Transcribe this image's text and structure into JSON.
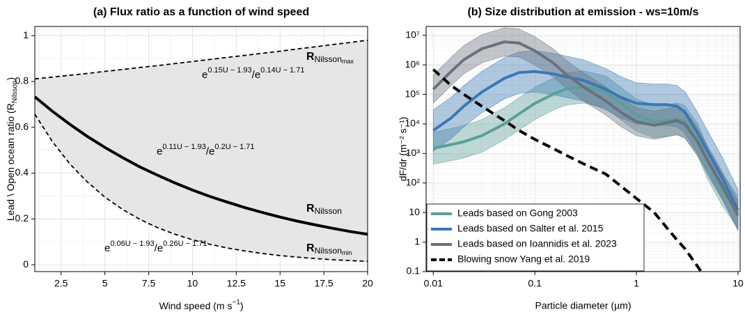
{
  "chart_data": [
    {
      "type": "line",
      "title": "(a) Flux ratio as a function of wind speed",
      "x": [
        1,
        2,
        3,
        4,
        5,
        6,
        7,
        8,
        9,
        10,
        11,
        12,
        13,
        14,
        15,
        16,
        17,
        18,
        19,
        20
      ],
      "xlim": [
        1,
        20
      ],
      "xticks": [
        2.5,
        5,
        7.5,
        10,
        12.5,
        15,
        17.5,
        20
      ],
      "ylim": [
        -0.03,
        1.04
      ],
      "yticks": [
        0,
        0.2,
        0.4,
        0.6,
        0.8,
        1
      ],
      "grid": true,
      "shade_color": "#e6e6e6",
      "xlabel": {
        "text": "Wind speed (m s",
        "sup": "−1",
        "end": ")"
      },
      "ylabel": {
        "text": "Lead \\ Open ocean ratio (R",
        "sub": "Nilsson",
        "end": ")"
      },
      "series": [
        {
          "color": "#000000",
          "style": "solid",
          "values": [
            0.733,
            0.67,
            0.613,
            0.56,
            0.512,
            0.468,
            0.427,
            0.391,
            0.357,
            0.326,
            0.298,
            0.273,
            0.249,
            0.228,
            0.208,
            0.19,
            0.174,
            0.159,
            0.145,
            0.133
          ]
        },
        {
          "color": "#000000",
          "style": "dashed",
          "values": [
            0.811,
            0.819,
            0.827,
            0.835,
            0.844,
            0.852,
            0.861,
            0.869,
            0.878,
            0.887,
            0.896,
            0.905,
            0.914,
            0.923,
            0.932,
            0.942,
            0.951,
            0.961,
            0.97,
            0.98
          ]
        },
        {
          "color": "#000000",
          "style": "dashed",
          "values": [
            0.657,
            0.538,
            0.44,
            0.361,
            0.295,
            0.242,
            0.198,
            0.162,
            0.133,
            0.109,
            0.089,
            0.073,
            0.06,
            0.049,
            0.04,
            0.033,
            0.027,
            0.022,
            0.018,
            0.015
          ]
        }
      ],
      "curve_labels": [
        {
          "R": "R",
          "sub": "Nilsson"
        },
        {
          "R": "R",
          "sub": "Nilsson",
          "subsub": "max"
        },
        {
          "R": "R",
          "sub": "Nilsson",
          "subsub": "min"
        }
      ],
      "formulas": [
        {
          "e1": "e",
          "x1": "0.11U − 1.93",
          "e2": "/e",
          "x2": "0.2U − 1.71"
        },
        {
          "e1": "e",
          "x1": "0.15U − 1.93",
          "e2": "/e",
          "x2": "0.14U − 1.71"
        },
        {
          "e1": "e",
          "x1": "0.06U − 1.93",
          "e2": "/e",
          "x2": "0.26U − 1.71"
        }
      ]
    },
    {
      "type": "line",
      "title": "(b) Size distribution at emission - ws=10m/s",
      "log_x": true,
      "log_y": true,
      "grid": true,
      "minor_grid": true,
      "legend": "lower left",
      "x": [
        0.01,
        0.015,
        0.02,
        0.03,
        0.05,
        0.07,
        0.1,
        0.15,
        0.2,
        0.3,
        0.5,
        0.7,
        1,
        1.5,
        2,
        2.5,
        3,
        4,
        5,
        7,
        10
      ],
      "xlim": [
        0.0085,
        10.5
      ],
      "xticks": [
        0.01,
        0.1,
        1,
        10
      ],
      "ylim": [
        0.1,
        20000000
      ],
      "yticks": [
        0.1,
        1,
        10,
        {
          "value": 100,
          "label": "10²"
        },
        {
          "value": 1000,
          "label": "10³"
        },
        {
          "value": 10000,
          "label": "10⁴"
        },
        {
          "value": 100000,
          "label": "10⁵"
        },
        {
          "value": 1000000,
          "label": "10⁶"
        },
        {
          "value": 10000000,
          "label": "10⁷"
        }
      ],
      "xlabel": "Particle diameter (µm)",
      "ylabel": "dF/dr (m⁻² s⁻¹)",
      "series": [
        {
          "name": "Leads based on Gong 2003",
          "color": "#5a9e9a",
          "style": "solid",
          "values": [
            1500,
            2000,
            2500,
            4000,
            10000,
            22000,
            50000,
            100000,
            150000,
            180000,
            120000,
            50000,
            20000,
            12000,
            13000,
            15000,
            12000,
            3000,
            500,
            60,
            10
          ],
          "lower": [
            430,
            570,
            710,
            1100,
            2900,
            6300,
            14000,
            29000,
            43000,
            51000,
            34000,
            14000,
            5700,
            3400,
            3700,
            4300,
            3400,
            860,
            140,
            17,
            2.9
          ],
          "upper": [
            5200,
            7000,
            8800,
            14000,
            35000,
            77000,
            175000,
            350000,
            525000,
            630000,
            420000,
            175000,
            70000,
            42000,
            45000,
            52000,
            42000,
            10500,
            1750,
            210,
            35
          ]
        },
        {
          "name": "Leads based on Salter et al. 2015",
          "color": "#3a78b5",
          "style": "solid",
          "values": [
            6000,
            16000,
            40000,
            120000,
            350000,
            550000,
            600000,
            500000,
            400000,
            300000,
            150000,
            80000,
            50000,
            45000,
            45000,
            40000,
            25000,
            5000,
            1200,
            150,
            12
          ],
          "lower": [
            1200,
            3200,
            8000,
            24000,
            70000,
            110000,
            120000,
            100000,
            80000,
            60000,
            30000,
            16000,
            10000,
            9000,
            9000,
            8000,
            5000,
            1000,
            240,
            30,
            2.4
          ],
          "upper": [
            30000,
            80000,
            200000,
            600000,
            1750000,
            2750000,
            3000000,
            2500000,
            2000000,
            1500000,
            750000,
            400000,
            250000,
            225000,
            225000,
            200000,
            125000,
            25000,
            6000,
            750,
            60
          ]
        },
        {
          "name": "Leads based on Ioannidis et al. 2023",
          "color": "#68717d",
          "style": "solid",
          "values": [
            150000,
            600000,
            1500000,
            3500000,
            6000000,
            5500000,
            3000000,
            1200000,
            500000,
            180000,
            60000,
            25000,
            12000,
            9000,
            11000,
            13000,
            10000,
            2500,
            600,
            80,
            8
          ],
          "lower": [
            50000,
            200000,
            500000,
            1170000,
            2000000,
            1830000,
            1000000,
            400000,
            170000,
            60000,
            20000,
            8300,
            4000,
            3000,
            3700,
            4300,
            3300,
            830,
            200,
            27,
            2.7
          ],
          "upper": [
            450000,
            1800000,
            4500000,
            10500000,
            18000000,
            16500000,
            9000000,
            3600000,
            1500000,
            540000,
            180000,
            75000,
            36000,
            27000,
            33000,
            39000,
            30000,
            7500,
            1800,
            240,
            24
          ]
        },
        {
          "name": "Blowing snow Yang et al. 2019",
          "color": "#000000",
          "style": "dashed",
          "values": [
            700000,
            200000,
            100000,
            40000,
            13000,
            6000,
            3000,
            1500,
            900,
            450,
            200,
            80,
            30,
            10,
            3,
            1.2,
            0.6,
            0.15,
            0.05,
            null,
            null
          ]
        }
      ]
    }
  ]
}
